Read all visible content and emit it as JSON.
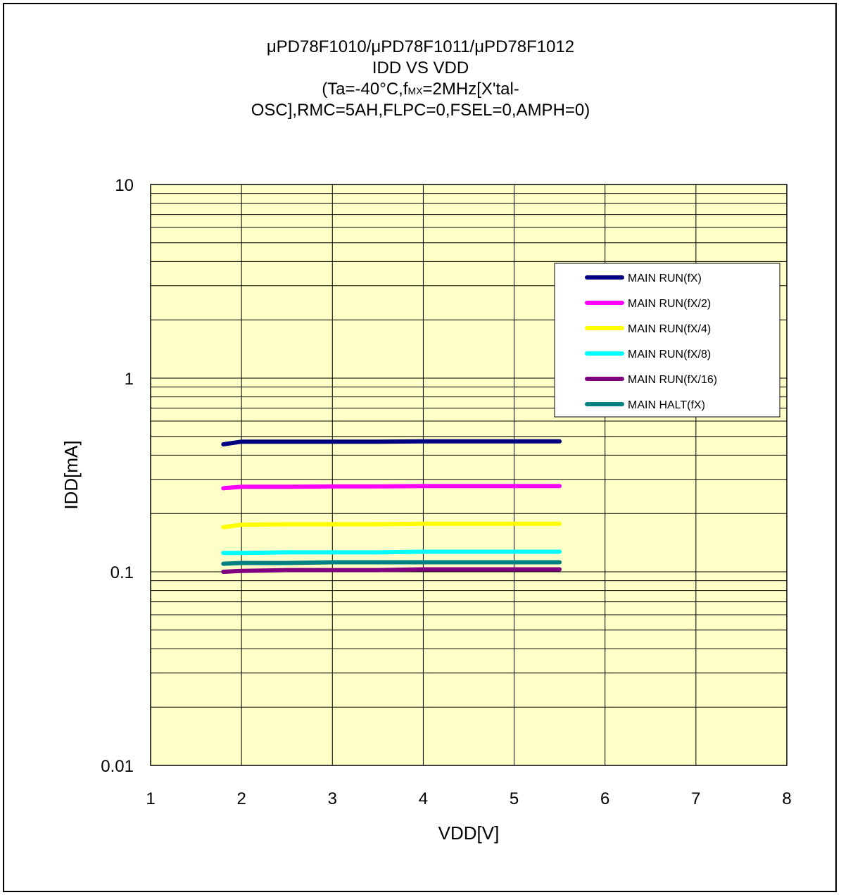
{
  "chart_data": {
    "type": "line",
    "title_lines": [
      "μPD78F1010/μPD78F1011/μPD78F1012",
      "IDD VS VDD"
    ],
    "subtitle": {
      "line3_before": "(Ta=-40°C,f",
      "line3_sub": "MX",
      "line3_after": "=2MHz[X'tal-",
      "line4": "OSC],RMC=5AH,FLPC=0,FSEL=0,AMPH=0)"
    },
    "xlabel": "VDD[V]",
    "ylabel": "IDD[mA]",
    "xlim": [
      1,
      8
    ],
    "ylim": [
      0.01,
      10
    ],
    "yscale": "log",
    "grid": true,
    "x_ticks": [
      "1",
      "2",
      "3",
      "4",
      "5",
      "6",
      "7",
      "8"
    ],
    "y_ticks": [
      "10",
      "1",
      "0.1",
      "0.01"
    ],
    "legend_position": "top-right",
    "plot_background": "#ffffc8",
    "series": [
      {
        "name": "MAIN RUN(fX)",
        "color": "#000080",
        "x": [
          1.8,
          2.0,
          2.5,
          3.0,
          3.5,
          4.0,
          4.5,
          5.0,
          5.5
        ],
        "y": [
          0.455,
          0.47,
          0.47,
          0.47,
          0.47,
          0.472,
          0.472,
          0.472,
          0.472
        ]
      },
      {
        "name": "MAIN RUN(fX/2)",
        "color": "#ff00ff",
        "x": [
          1.8,
          2.0,
          2.5,
          3.0,
          3.5,
          4.0,
          4.5,
          5.0,
          5.5
        ],
        "y": [
          0.27,
          0.275,
          0.275,
          0.276,
          0.276,
          0.277,
          0.277,
          0.277,
          0.277
        ]
      },
      {
        "name": "MAIN RUN(fX/4)",
        "color": "#ffff00",
        "x": [
          1.8,
          2.0,
          2.5,
          3.0,
          3.5,
          4.0,
          4.5,
          5.0,
          5.5
        ],
        "y": [
          0.17,
          0.175,
          0.176,
          0.176,
          0.176,
          0.177,
          0.177,
          0.177,
          0.177
        ]
      },
      {
        "name": "MAIN RUN(fX/8)",
        "color": "#00ffff",
        "x": [
          1.8,
          2.0,
          2.5,
          3.0,
          3.5,
          4.0,
          4.5,
          5.0,
          5.5
        ],
        "y": [
          0.125,
          0.125,
          0.126,
          0.126,
          0.126,
          0.127,
          0.127,
          0.127,
          0.127
        ]
      },
      {
        "name": "MAIN RUN(fX/16)",
        "color": "#800080",
        "x": [
          1.8,
          2.0,
          2.5,
          3.0,
          3.5,
          4.0,
          4.5,
          5.0,
          5.5
        ],
        "y": [
          0.1,
          0.101,
          0.102,
          0.102,
          0.102,
          0.103,
          0.103,
          0.103,
          0.103
        ]
      },
      {
        "name": "MAIN HALT(fX)",
        "color": "#008080",
        "x": [
          1.8,
          2.0,
          2.5,
          3.0,
          3.5,
          4.0,
          4.5,
          5.0,
          5.5
        ],
        "y": [
          0.11,
          0.111,
          0.111,
          0.112,
          0.112,
          0.112,
          0.112,
          0.112,
          0.112
        ]
      }
    ]
  }
}
